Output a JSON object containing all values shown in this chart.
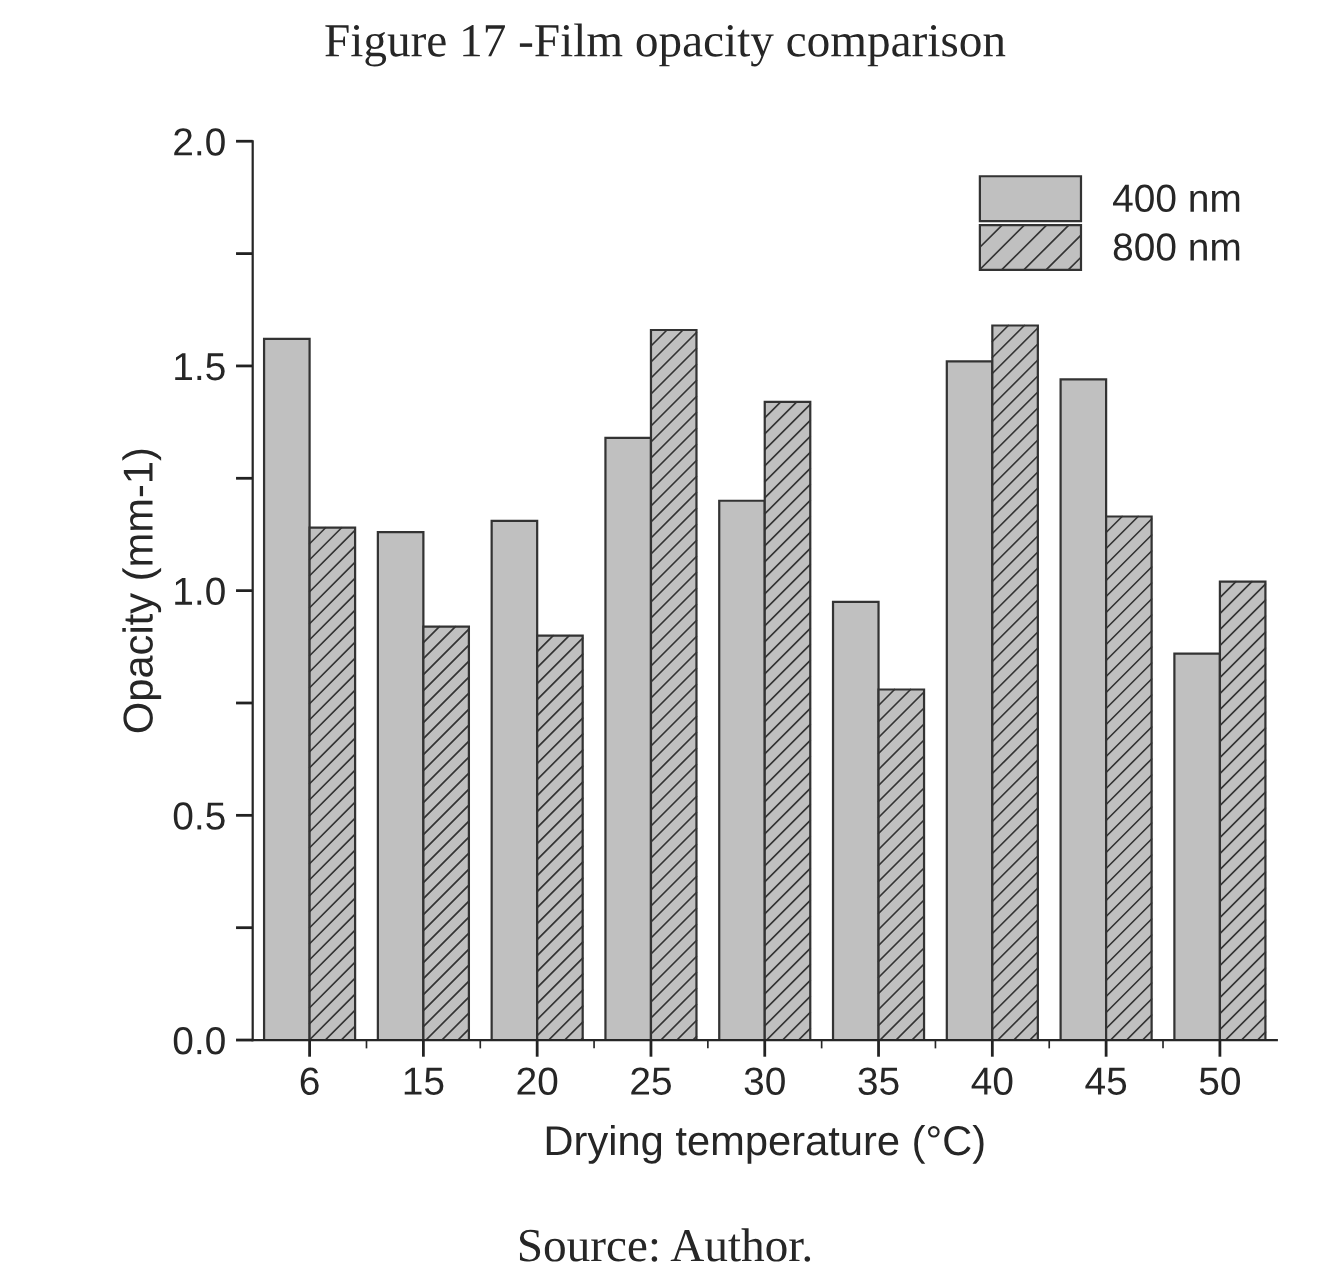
{
  "chart_data": {
    "type": "bar",
    "title": "Figure 17 -Film opacity comparison",
    "xlabel": "Drying temperature (°C)",
    "ylabel": "Opacity (mm-1)",
    "categories": [
      "6",
      "15",
      "20",
      "25",
      "30",
      "35",
      "40",
      "45",
      "50"
    ],
    "series": [
      {
        "name": "400 nm",
        "color": "#c0c0c0",
        "values": [
          1.56,
          1.13,
          1.155,
          1.34,
          1.2,
          0.975,
          1.51,
          1.47,
          0.86
        ]
      },
      {
        "name": "800 nm",
        "color": "#c0c0c0",
        "values": [
          1.14,
          0.92,
          0.9,
          1.58,
          1.42,
          0.78,
          1.59,
          1.165,
          1.02
        ]
      }
    ],
    "ylim": [
      0,
      2.0
    ],
    "yticks": [
      {
        "value": 0,
        "label": "0.0"
      },
      {
        "value": 0.25,
        "label": null
      },
      {
        "value": 0.5,
        "label": "0.5"
      },
      {
        "value": 0.75,
        "label": null
      },
      {
        "value": 1.0,
        "label": "1.0"
      },
      {
        "value": 1.25,
        "label": null
      },
      {
        "value": 1.5,
        "label": "1.5"
      },
      {
        "value": 1.75,
        "label": null
      },
      {
        "value": 2.0,
        "label": "2.0"
      }
    ],
    "legend": "top right",
    "grid": false,
    "annotations": [
      "Source: Author."
    ]
  }
}
